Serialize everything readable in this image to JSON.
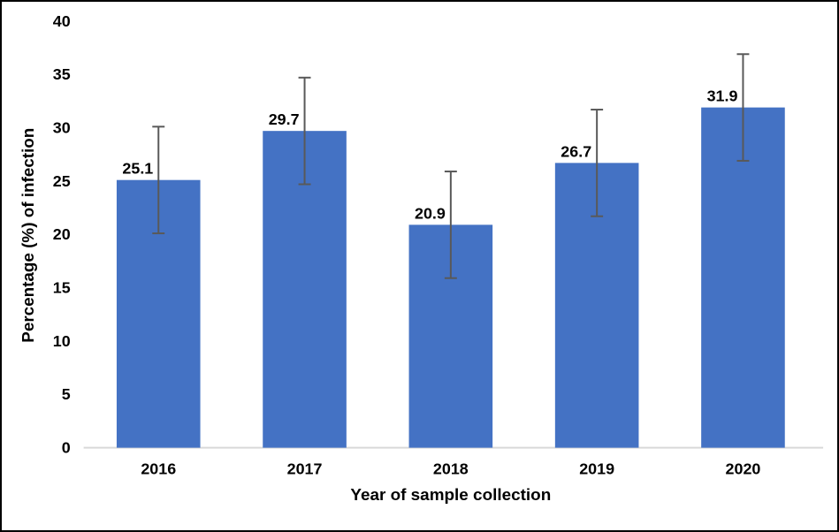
{
  "figure": {
    "background": "#FFFFFF",
    "border_color": "#000000"
  },
  "chart_data": {
    "type": "bar",
    "categories": [
      "2016",
      "2017",
      "2018",
      "2019",
      "2020"
    ],
    "values": [
      25.1,
      29.7,
      20.9,
      26.7,
      31.9
    ],
    "error_bars_plus": [
      5.0,
      5.0,
      5.0,
      5.0,
      5.0
    ],
    "error_bars_minus": [
      5.0,
      5.0,
      5.0,
      5.0,
      5.0
    ],
    "data_labels": [
      "25.1",
      "29.7",
      "20.9",
      "26.7",
      "31.9"
    ],
    "title": "",
    "xlabel": "Year of sample collection",
    "ylabel": "Percentage (%) of infection",
    "yticks": [
      0,
      5,
      10,
      15,
      20,
      25,
      30,
      35,
      40
    ],
    "ylim": [
      0,
      40
    ],
    "grid": false,
    "legend_position": "none",
    "bar_color": "#4472C4",
    "error_bar_color": "#595959",
    "axis_line_color": "#D9D9D9",
    "text_color": "#000000"
  }
}
